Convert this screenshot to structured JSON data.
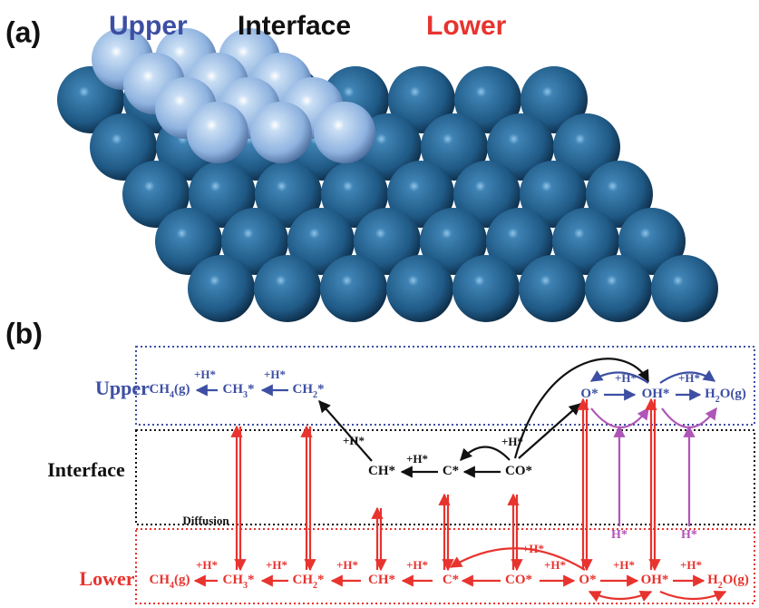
{
  "panel_a": {
    "label": "(a)",
    "legend": [
      {
        "text": "Upper",
        "color": "#3d4fa3"
      },
      {
        "text": "Interface",
        "color": "#111111"
      },
      {
        "text": "Lower",
        "color": "#e8332e"
      }
    ]
  },
  "panel_b": {
    "label": "(b)",
    "rows": [
      "Upper",
      "Interface",
      "Lower"
    ],
    "upper_species": [
      [
        "CH",
        "4",
        "(g)"
      ],
      [
        "CH",
        "3",
        "*"
      ],
      [
        "CH",
        "2",
        "*"
      ],
      [
        "O*"
      ],
      [
        "OH*"
      ],
      [
        "H",
        "2",
        "O(g)"
      ]
    ],
    "interface_species": [
      [
        "CH*"
      ],
      [
        "C*"
      ],
      [
        "CO*"
      ]
    ],
    "lower_species": [
      [
        "CH",
        "4",
        "(g)"
      ],
      [
        "CH",
        "3",
        "*"
      ],
      [
        "CH",
        "2",
        "*"
      ],
      [
        "CH*"
      ],
      [
        "C*"
      ],
      [
        "CO*"
      ],
      [
        "O*"
      ],
      [
        "OH*"
      ],
      [
        "H",
        "2",
        "O(g)"
      ]
    ],
    "reagent": "+H*",
    "h_source": "H*",
    "diffusion": "Diffusion"
  }
}
